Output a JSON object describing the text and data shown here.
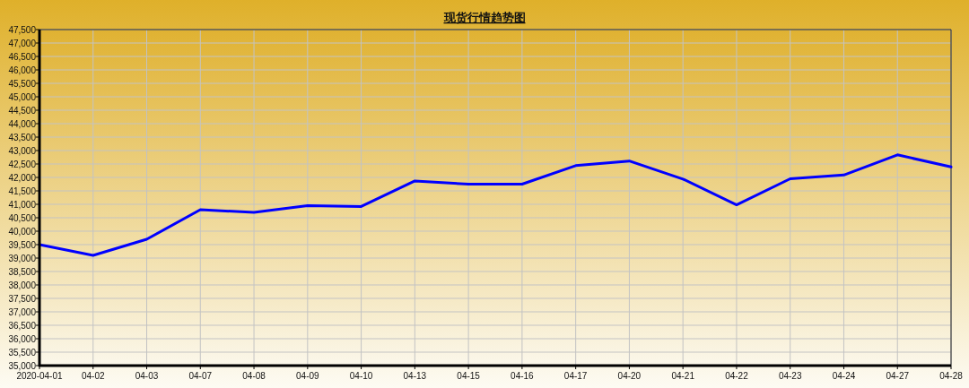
{
  "chart_data": {
    "type": "line",
    "title": "现货行情趋势图",
    "categories": [
      "2020-04-01",
      "04-02",
      "04-03",
      "04-07",
      "04-08",
      "04-09",
      "04-10",
      "04-13",
      "04-15",
      "04-16",
      "04-17",
      "04-20",
      "04-21",
      "04-22",
      "04-23",
      "04-24",
      "04-27",
      "04-28"
    ],
    "series": [
      {
        "color": "#0000ff",
        "values": [
          39500,
          39100,
          39700,
          40800,
          40700,
          40950,
          40920,
          41870,
          41750,
          41750,
          42440,
          42610,
          41940,
          40980,
          41950,
          42090,
          42840,
          42390
        ]
      }
    ],
    "ylim": [
      35000,
      47500
    ],
    "yticks": [
      {
        "value": 35000,
        "label": "35,000"
      },
      {
        "value": 35500,
        "label": "35,500"
      },
      {
        "value": 36000,
        "label": "36,000"
      },
      {
        "value": 36500,
        "label": "36,500"
      },
      {
        "value": 37000,
        "label": "37,000"
      },
      {
        "value": 37500,
        "label": "37,500"
      },
      {
        "value": 38000,
        "label": "38,000"
      },
      {
        "value": 38500,
        "label": "38,500"
      },
      {
        "value": 39000,
        "label": "39,000"
      },
      {
        "value": 39500,
        "label": "39,500"
      },
      {
        "value": 40000,
        "label": "40,000"
      },
      {
        "value": 40500,
        "label": "40,500"
      },
      {
        "value": 41000,
        "label": "41,000"
      },
      {
        "value": 41500,
        "label": "41,500"
      },
      {
        "value": 42000,
        "label": "42,000"
      },
      {
        "value": 42500,
        "label": "42,500"
      },
      {
        "value": 43000,
        "label": "43,000"
      },
      {
        "value": 43500,
        "label": "43,500"
      },
      {
        "value": 44000,
        "label": "44,000"
      },
      {
        "value": 44500,
        "label": "44,500"
      },
      {
        "value": 45000,
        "label": "45,000"
      },
      {
        "value": 45500,
        "label": "45,500"
      },
      {
        "value": 46000,
        "label": "46,000"
      },
      {
        "value": 46500,
        "label": "46,500"
      },
      {
        "value": 47000,
        "label": "47,000"
      },
      {
        "value": 47500,
        "label": "47,500"
      }
    ],
    "grid": true,
    "line_style": "solid"
  }
}
